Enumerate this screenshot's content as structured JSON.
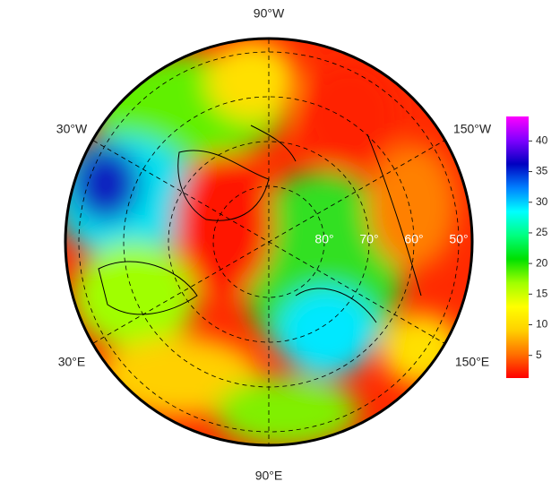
{
  "map": {
    "type": "polar-map",
    "longitude_labels": [
      "90°W",
      "30°W",
      "150°W",
      "30°E",
      "150°E",
      "90°E"
    ],
    "latitude_labels": [
      "80°",
      "70°",
      "60°",
      "50°"
    ],
    "colorbar": {
      "range": [
        1.3,
        44
      ],
      "ticks": [
        5,
        10,
        15,
        20,
        25,
        30,
        35,
        40
      ],
      "colors": [
        "#ff0000",
        "#ff7000",
        "#ffd000",
        "#ffff00",
        "#a0ff00",
        "#00e000",
        "#00ff80",
        "#00ffff",
        "#0080ff",
        "#0000c0",
        "#8000ff",
        "#ff00ff"
      ]
    }
  }
}
